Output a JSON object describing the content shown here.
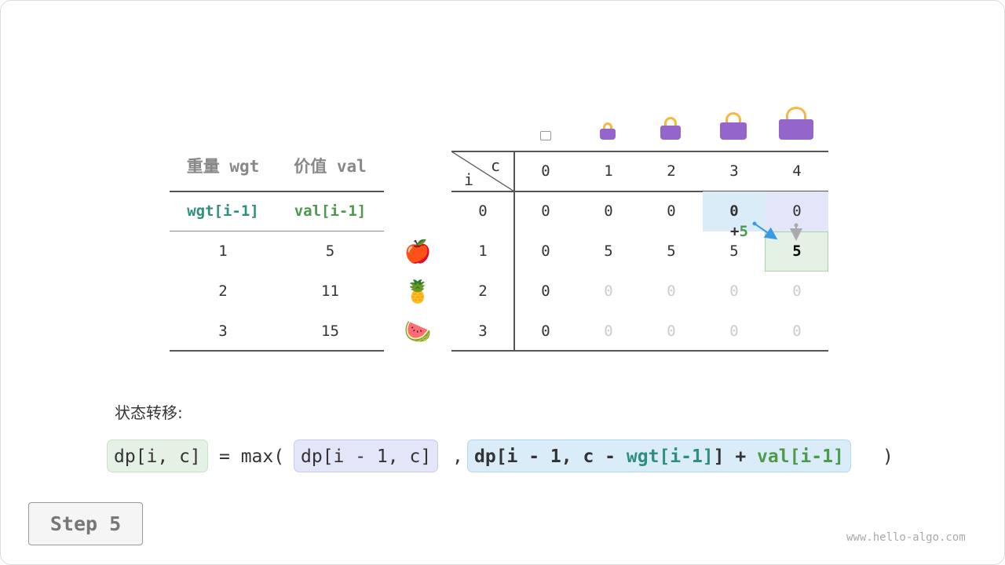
{
  "left_table": {
    "headers": [
      "重量 wgt",
      "价值 val"
    ],
    "subheaders": [
      "wgt[i-1]",
      "val[i-1]"
    ],
    "rows": [
      [
        "1",
        "5"
      ],
      [
        "2",
        "11"
      ],
      [
        "3",
        "15"
      ]
    ]
  },
  "items": [
    {
      "icon": "apple-icon",
      "glyph": "🍎"
    },
    {
      "icon": "pineapple-icon",
      "glyph": "🍍"
    },
    {
      "icon": "watermelon-icon",
      "glyph": "🍉"
    }
  ],
  "dp_table": {
    "corner_c": "c",
    "corner_i": "i",
    "col_headers": [
      "0",
      "1",
      "2",
      "3",
      "4"
    ],
    "row_headers": [
      "0",
      "1",
      "2",
      "3"
    ],
    "rows": [
      [
        "0",
        "0",
        "0",
        "0",
        "0"
      ],
      [
        "0",
        "5",
        "5",
        "5",
        "5"
      ],
      [
        "0",
        "0",
        "0",
        "0",
        "0"
      ],
      [
        "0",
        "0",
        "0",
        "0",
        "0"
      ]
    ],
    "annotation": {
      "plus": "+",
      "value": "5"
    }
  },
  "formula": {
    "label": "状态转移:",
    "lhs": "dp[i, c]",
    "eq": "= max(",
    "opt1": "dp[i - 1, c]",
    "comma": ",",
    "opt2_a": "dp[i - 1, c - ",
    "opt2_wgt": "wgt[i-1]",
    "opt2_b": "] + ",
    "opt2_val": "val[i-1]",
    "close": ")"
  },
  "step_button": "Step 5",
  "watermark": "www.hello-algo.com",
  "colors": {
    "teal": "#2f8f7f",
    "green": "#4c9a4c",
    "blue_bg": "#dbecf9",
    "purple_bg": "#e3e5f8",
    "green_bg": "#e5f1e4",
    "bag": "#9466cc"
  }
}
